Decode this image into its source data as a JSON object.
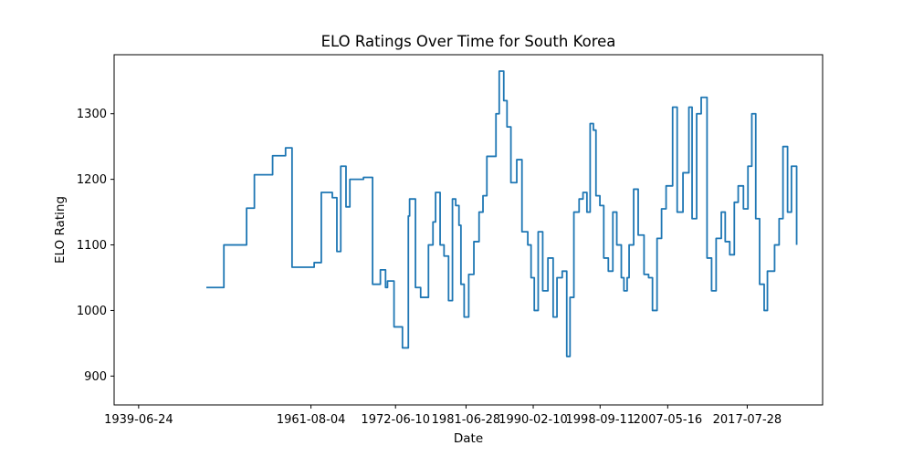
{
  "chart_data": {
    "type": "line",
    "title": "ELO Ratings Over Time for South Korea",
    "xlabel": "Date",
    "ylabel": "ELO Rating",
    "x_ticks": [
      "1939-06-24",
      "1961-08-04",
      "1972-06-10",
      "1981-06-28",
      "1990-02-10",
      "1998-09-11",
      "2007-05-16",
      "2017-07-28"
    ],
    "y_ticks": [
      900,
      1000,
      1100,
      1200,
      1300
    ],
    "xlim": [
      "1936-05-01",
      "2027-04-01"
    ],
    "ylim": [
      856,
      1390
    ],
    "grid": false,
    "color": "#1f77b4",
    "series": [
      {
        "x": [
          "1948-03-01",
          "1949-01-01",
          "1950-06-01",
          "1953-05-01",
          "1954-05-01",
          "1954-09-01",
          "1954-11-01",
          "1956-01-01",
          "1956-09-01",
          "1957-06-01",
          "1958-05-01",
          "1959-03-01",
          "1960-06-01",
          "1962-01-01",
          "1962-12-01",
          "1963-09-01",
          "1964-05-01",
          "1964-12-01",
          "1965-06-01",
          "1966-02-01",
          "1966-08-01",
          "1967-04-01",
          "1968-05-01",
          "1969-07-01",
          "1970-07-01",
          "1971-03-01",
          "1971-06-01",
          "1972-04-01",
          "1973-05-01",
          "1974-02-01",
          "1974-04-01",
          "1975-01-01",
          "1975-09-01",
          "1976-09-01",
          "1977-04-01",
          "1977-08-01",
          "1978-03-01",
          "1978-09-01",
          "1979-04-01",
          "1979-10-01",
          "1980-03-01",
          "1980-08-01",
          "1980-11-01",
          "1981-04-01",
          "1981-11-01",
          "1982-07-01",
          "1983-03-01",
          "1983-09-01",
          "1984-03-01",
          "1984-11-01",
          "1985-05-01",
          "1985-10-01",
          "1986-05-01",
          "1986-10-01",
          "1987-04-01",
          "1988-01-01",
          "1988-09-01",
          "1989-06-01",
          "1989-11-01",
          "1990-04-01",
          "1990-10-01",
          "1991-05-01",
          "1992-01-01",
          "1992-09-01",
          "1993-03-01",
          "1993-11-01",
          "1994-06-01",
          "1994-11-01",
          "1995-05-01",
          "1996-01-01",
          "1996-07-01",
          "1997-01-01",
          "1997-06-01",
          "1997-11-01",
          "1998-03-01",
          "1998-09-01",
          "1999-03-01",
          "1999-10-01",
          "2000-05-01",
          "2000-11-01",
          "2001-06-01",
          "2001-10-01",
          "2002-03-01",
          "2002-06-01",
          "2003-01-01",
          "2003-08-01",
          "2004-05-01",
          "2004-12-01",
          "2005-06-01",
          "2006-01-01",
          "2006-08-01",
          "2007-03-01",
          "2008-01-01",
          "2008-08-01",
          "2009-05-01",
          "2010-02-01",
          "2010-07-01",
          "2011-02-01",
          "2011-09-01",
          "2012-06-01",
          "2013-01-01",
          "2013-08-01",
          "2014-04-01",
          "2014-10-01",
          "2015-05-01",
          "2015-12-01",
          "2016-06-01",
          "2017-02-01",
          "2017-09-01",
          "2018-03-01",
          "2018-09-01",
          "2019-03-01",
          "2019-10-01",
          "2020-03-01",
          "2021-02-01",
          "2021-09-01",
          "2022-03-01",
          "2022-10-01",
          "2023-04-01",
          "2023-12-01"
        ],
        "y": [
          1035,
          1035,
          1100,
          1156,
          1207,
          1207,
          1207,
          1207,
          1236,
          1236,
          1248,
          1066,
          1066,
          1073,
          1180,
          1180,
          1172,
          1090,
          1220,
          1158,
          1200,
          1200,
          1203,
          1040,
          1062,
          1035,
          1045,
          975,
          943,
          1144,
          1170,
          1035,
          1020,
          1100,
          1135,
          1180,
          1100,
          1083,
          1015,
          1170,
          1160,
          1130,
          1040,
          990,
          1055,
          1105,
          1150,
          1175,
          1235,
          1235,
          1300,
          1365,
          1320,
          1280,
          1195,
          1230,
          1120,
          1100,
          1050,
          1000,
          1120,
          1030,
          1080,
          990,
          1050,
          1060,
          930,
          1020,
          1150,
          1170,
          1180,
          1150,
          1285,
          1275,
          1175,
          1160,
          1080,
          1060,
          1150,
          1100,
          1050,
          1030,
          1050,
          1100,
          1185,
          1115,
          1055,
          1050,
          1000,
          1110,
          1155,
          1190,
          1310,
          1150,
          1210,
          1310,
          1140,
          1300,
          1325,
          1080,
          1030,
          1110,
          1150,
          1105,
          1085,
          1165,
          1190,
          1155,
          1220,
          1300,
          1140,
          1040,
          1000,
          1060,
          1100,
          1140,
          1250,
          1150,
          1220,
          1100
        ]
      }
    ]
  }
}
